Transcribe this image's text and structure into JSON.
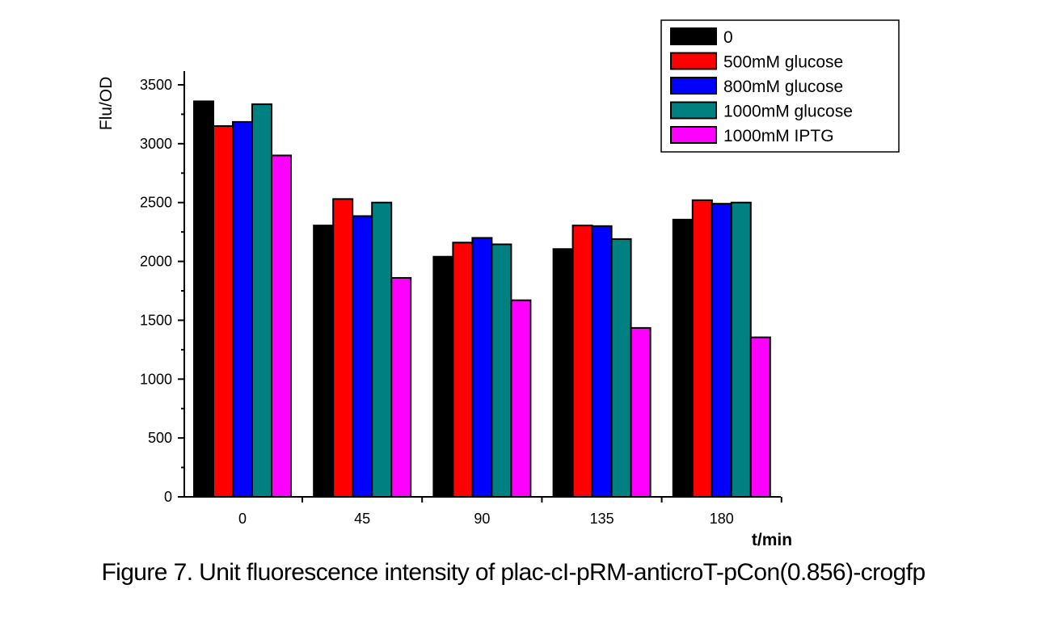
{
  "chart_data": {
    "type": "bar",
    "title": "",
    "xlabel": "t/min",
    "ylabel": "Flu/OD",
    "categories": [
      "0",
      "45",
      "90",
      "135",
      "180"
    ],
    "ylim": [
      0,
      3500
    ],
    "yticks": [
      "0",
      "500",
      "1000",
      "1500",
      "2000",
      "2500",
      "3000",
      "3500"
    ],
    "legend_position": "top-right",
    "series": [
      {
        "name": "0",
        "color": "#000000",
        "values": [
          3360,
          2305,
          2040,
          2105,
          2355
        ]
      },
      {
        "name": "500mM glucose",
        "color": "#ff0000",
        "values": [
          3150,
          2530,
          2160,
          2305,
          2520
        ]
      },
      {
        "name": "800mM glucose",
        "color": "#0000ff",
        "values": [
          3185,
          2385,
          2200,
          2300,
          2490
        ]
      },
      {
        "name": "1000mM glucose",
        "color": "#008080",
        "values": [
          3335,
          2500,
          2145,
          2190,
          2500
        ]
      },
      {
        "name": "1000mM IPTG",
        "color": "#ff00ff",
        "values": [
          2900,
          1860,
          1670,
          1435,
          1355
        ]
      }
    ]
  },
  "caption": "Figure 7. Unit fluorescence intensity of plac-cI-pRM-anticroT-pCon(0.856)-crogfp"
}
